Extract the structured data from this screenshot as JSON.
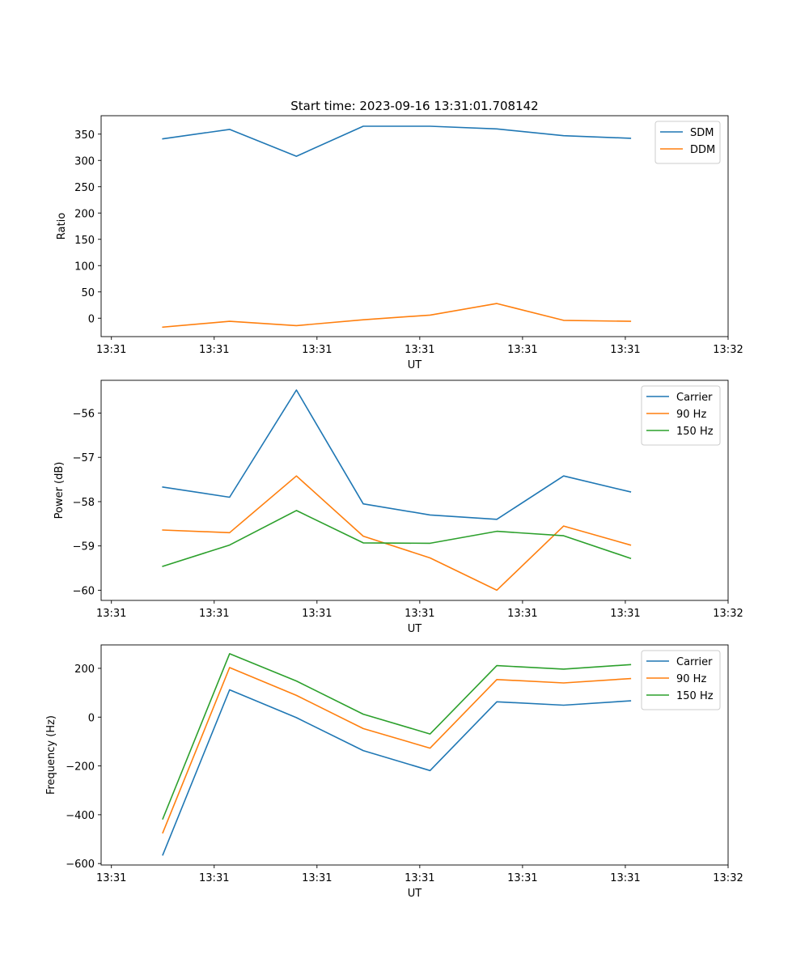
{
  "figure_title": "Start time: 2023-09-16 13:31:01.708142",
  "chart_data": [
    {
      "type": "line",
      "title": "Start time: 2023-09-16 13:31:01.708142",
      "xlabel": "UT",
      "ylabel": "Ratio",
      "x_tick_labels": [
        "13:31",
        "13:31",
        "13:31",
        "13:31",
        "13:31",
        "13:31",
        "13:32"
      ],
      "x_ticks": [
        0,
        1,
        2,
        3,
        4,
        5,
        6
      ],
      "xlim": [
        -0.1,
        6.0
      ],
      "x": [
        0.5,
        1.15,
        1.8,
        2.45,
        3.1,
        3.75,
        4.4,
        5.05
      ],
      "ylim": [
        -35,
        385
      ],
      "y_ticks": [
        0,
        50,
        100,
        150,
        200,
        250,
        300,
        350
      ],
      "y_tick_labels": [
        "0",
        "50",
        "100",
        "150",
        "200",
        "250",
        "300",
        "350"
      ],
      "legend_position": "top-right",
      "series": [
        {
          "name": "SDM",
          "color": "#1f77b4",
          "values": [
            341,
            359,
            308,
            365,
            365,
            360,
            347,
            342
          ]
        },
        {
          "name": "DDM",
          "color": "#ff7f0e",
          "values": [
            -17,
            -6,
            -14,
            -3,
            6,
            28,
            -4,
            -6
          ]
        }
      ]
    },
    {
      "type": "line",
      "xlabel": "UT",
      "ylabel": "Power (dB)",
      "x_tick_labels": [
        "13:31",
        "13:31",
        "13:31",
        "13:31",
        "13:31",
        "13:31",
        "13:32"
      ],
      "x_ticks": [
        0,
        1,
        2,
        3,
        4,
        5,
        6
      ],
      "xlim": [
        -0.1,
        6.0
      ],
      "x": [
        0.5,
        1.15,
        1.8,
        2.45,
        3.1,
        3.75,
        4.4,
        5.05
      ],
      "ylim": [
        -60.23,
        -55.26
      ],
      "y_ticks": [
        -60,
        -59,
        -58,
        -57,
        -56
      ],
      "y_tick_labels": [
        "−60",
        "−59",
        "−58",
        "−57",
        "−56"
      ],
      "legend_position": "top-right",
      "series": [
        {
          "name": "Carrier",
          "color": "#1f77b4",
          "values": [
            -57.67,
            -57.9,
            -55.48,
            -58.05,
            -58.3,
            -58.4,
            -57.42,
            -57.78
          ]
        },
        {
          "name": "90 Hz",
          "color": "#ff7f0e",
          "values": [
            -58.64,
            -58.7,
            -57.42,
            -58.78,
            -59.27,
            -60.0,
            -58.55,
            -58.98
          ]
        },
        {
          "name": "150 Hz",
          "color": "#2ca02c",
          "values": [
            -59.46,
            -58.98,
            -58.2,
            -58.93,
            -58.94,
            -58.67,
            -58.77,
            -59.28
          ]
        }
      ]
    },
    {
      "type": "line",
      "xlabel": "UT",
      "ylabel": "Frequency (Hz)",
      "x_tick_labels": [
        "13:31",
        "13:31",
        "13:31",
        "13:31",
        "13:31",
        "13:31",
        "13:32"
      ],
      "x_ticks": [
        0,
        1,
        2,
        3,
        4,
        5,
        6
      ],
      "xlim": [
        -0.1,
        6.0
      ],
      "x": [
        0.5,
        1.15,
        1.8,
        2.45,
        3.1,
        3.75,
        4.4,
        5.05
      ],
      "ylim": [
        -606,
        296
      ],
      "y_ticks": [
        -600,
        -400,
        -200,
        0,
        200
      ],
      "y_tick_labels": [
        "−600",
        "−400",
        "−200",
        "0",
        "200"
      ],
      "legend_position": "top-right",
      "series": [
        {
          "name": "Carrier",
          "color": "#1f77b4",
          "values": [
            -565,
            112,
            -2,
            -137,
            -219,
            63,
            49,
            67
          ]
        },
        {
          "name": "90 Hz",
          "color": "#ff7f0e",
          "values": [
            -474,
            203,
            89,
            -47,
            -127,
            154,
            140,
            158
          ]
        },
        {
          "name": "150 Hz",
          "color": "#2ca02c",
          "values": [
            -417,
            260,
            148,
            12,
            -69,
            211,
            197,
            215
          ]
        }
      ]
    }
  ]
}
